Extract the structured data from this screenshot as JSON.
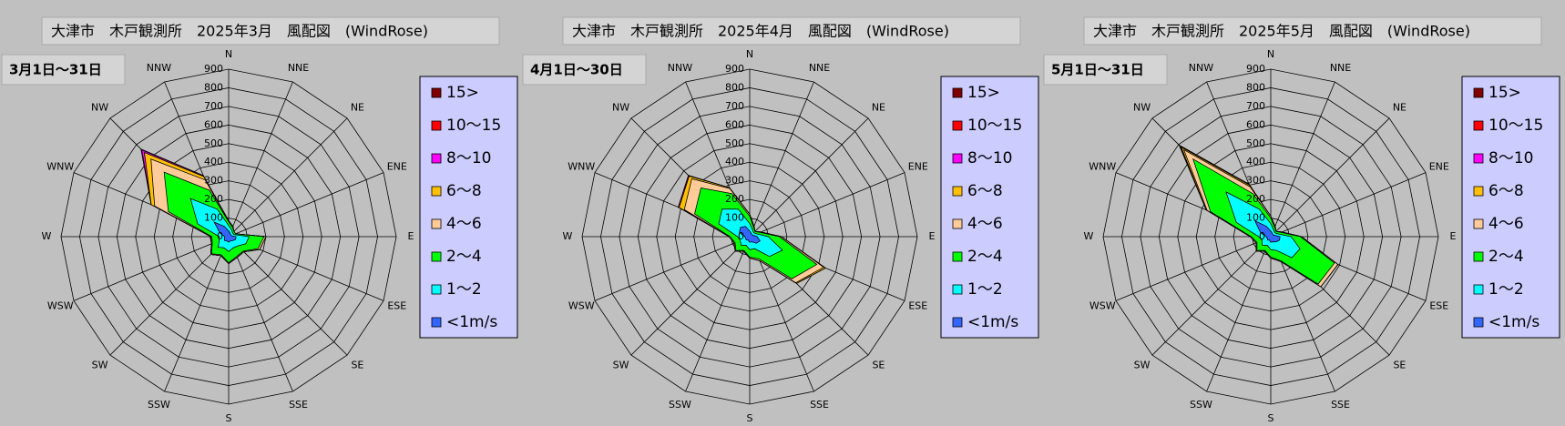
{
  "chart_data": [
    {
      "type": "radar",
      "stacked": true,
      "title": "大津市　木戸観測所　2025年3月　風配図　(WindRose)",
      "subtitle": "3月1日〜31日",
      "categories": [
        "N",
        "NNE",
        "NE",
        "ENE",
        "E",
        "ESE",
        "SE",
        "SSE",
        "S",
        "SSW",
        "SW",
        "WSW",
        "W",
        "WNW",
        "NW",
        "NNW"
      ],
      "rlim": [
        0,
        900
      ],
      "rticks": [
        0,
        100,
        200,
        300,
        400,
        500,
        600,
        700,
        800,
        900
      ],
      "series": [
        {
          "name": "15>",
          "color": "#800000",
          "values": [
            0,
            0,
            0,
            0,
            0,
            0,
            0,
            0,
            0,
            0,
            0,
            0,
            0,
            0,
            0,
            0
          ]
        },
        {
          "name": "10〜15",
          "color": "#ff0000",
          "values": [
            0,
            0,
            0,
            0,
            0,
            0,
            0,
            0,
            0,
            0,
            0,
            0,
            0,
            0,
            5,
            0
          ]
        },
        {
          "name": "8〜10",
          "color": "#ff00ff",
          "values": [
            0,
            0,
            0,
            0,
            0,
            0,
            0,
            0,
            0,
            0,
            0,
            0,
            0,
            0,
            20,
            5
          ]
        },
        {
          "name": "6〜8",
          "color": "#ffc000",
          "values": [
            0,
            0,
            0,
            0,
            0,
            0,
            0,
            0,
            0,
            0,
            0,
            0,
            0,
            20,
            50,
            20
          ]
        },
        {
          "name": "4〜6",
          "color": "#ffcc99",
          "values": [
            5,
            5,
            0,
            0,
            10,
            10,
            5,
            5,
            5,
            5,
            5,
            5,
            5,
            80,
            100,
            60
          ]
        },
        {
          "name": "2〜4",
          "color": "#00ff00",
          "values": [
            20,
            15,
            10,
            10,
            80,
            70,
            40,
            50,
            60,
            40,
            50,
            40,
            40,
            170,
            200,
            110
          ]
        },
        {
          "name": "1〜2",
          "color": "#00ffff",
          "values": [
            30,
            20,
            15,
            15,
            70,
            60,
            40,
            40,
            50,
            40,
            50,
            30,
            30,
            130,
            180,
            100
          ]
        },
        {
          "name": "<1m/s",
          "color": "#3366ff",
          "values": [
            30,
            20,
            15,
            15,
            40,
            40,
            30,
            25,
            30,
            25,
            30,
            25,
            20,
            50,
            110,
            60
          ]
        }
      ]
    },
    {
      "type": "radar",
      "stacked": true,
      "title": "大津市　木戸観測所　2025年4月　風配図　(WindRose)",
      "subtitle": "4月1日〜30日",
      "categories": [
        "N",
        "NNE",
        "NE",
        "ENE",
        "E",
        "ESE",
        "SE",
        "SSE",
        "S",
        "SSW",
        "SW",
        "WSW",
        "W",
        "WNW",
        "NW",
        "NNW"
      ],
      "rlim": [
        0,
        900
      ],
      "rticks": [
        0,
        100,
        200,
        300,
        400,
        500,
        600,
        700,
        800,
        900
      ],
      "series": [
        {
          "name": "15>",
          "color": "#800000",
          "values": [
            0,
            0,
            0,
            0,
            0,
            0,
            0,
            0,
            0,
            0,
            0,
            0,
            0,
            0,
            0,
            0
          ]
        },
        {
          "name": "10〜15",
          "color": "#ff0000",
          "values": [
            0,
            0,
            0,
            0,
            0,
            0,
            0,
            0,
            0,
            0,
            0,
            0,
            0,
            0,
            0,
            0
          ]
        },
        {
          "name": "8〜10",
          "color": "#ff00ff",
          "values": [
            0,
            0,
            0,
            0,
            0,
            0,
            0,
            0,
            0,
            0,
            0,
            0,
            0,
            5,
            5,
            0
          ]
        },
        {
          "name": "6〜8",
          "color": "#ffc000",
          "values": [
            0,
            0,
            0,
            0,
            0,
            10,
            5,
            0,
            0,
            0,
            0,
            0,
            0,
            30,
            20,
            5
          ]
        },
        {
          "name": "4〜6",
          "color": "#ffcc99",
          "values": [
            10,
            5,
            0,
            5,
            10,
            40,
            30,
            10,
            5,
            5,
            5,
            5,
            5,
            60,
            70,
            30
          ]
        },
        {
          "name": "2〜4",
          "color": "#00ff00",
          "values": [
            40,
            15,
            10,
            20,
            60,
            200,
            170,
            60,
            40,
            30,
            40,
            30,
            40,
            140,
            160,
            90
          ]
        },
        {
          "name": "1〜2",
          "color": "#00ffff",
          "values": [
            40,
            20,
            15,
            20,
            60,
            130,
            100,
            40,
            40,
            30,
            40,
            30,
            40,
            120,
            140,
            100
          ]
        },
        {
          "name": "<1m/s",
          "color": "#3366ff",
          "values": [
            30,
            20,
            15,
            20,
            40,
            60,
            50,
            30,
            30,
            20,
            25,
            25,
            25,
            60,
            70,
            60
          ]
        }
      ]
    },
    {
      "type": "radar",
      "stacked": true,
      "title": "大津市　木戸観測所　2025年5月　風配図　(WindRose)",
      "subtitle": "5月1日〜31日",
      "categories": [
        "N",
        "NNE",
        "NE",
        "ENE",
        "E",
        "ESE",
        "SE",
        "SSE",
        "S",
        "SSW",
        "SW",
        "WSW",
        "W",
        "WNW",
        "NW",
        "NNW"
      ],
      "rlim": [
        0,
        900
      ],
      "rticks": [
        0,
        100,
        200,
        300,
        400,
        500,
        600,
        700,
        800,
        900
      ],
      "series": [
        {
          "name": "15>",
          "color": "#800000",
          "values": [
            0,
            0,
            0,
            0,
            0,
            0,
            0,
            0,
            0,
            0,
            0,
            0,
            0,
            0,
            0,
            0
          ]
        },
        {
          "name": "10〜15",
          "color": "#ff0000",
          "values": [
            0,
            0,
            0,
            0,
            0,
            0,
            0,
            0,
            0,
            0,
            0,
            0,
            0,
            0,
            5,
            0
          ]
        },
        {
          "name": "8〜10",
          "color": "#ff00ff",
          "values": [
            0,
            0,
            0,
            0,
            0,
            0,
            0,
            0,
            0,
            0,
            0,
            0,
            0,
            0,
            10,
            5
          ]
        },
        {
          "name": "6〜8",
          "color": "#ffc000",
          "values": [
            0,
            0,
            0,
            0,
            0,
            0,
            0,
            0,
            0,
            0,
            0,
            0,
            0,
            5,
            20,
            10
          ]
        },
        {
          "name": "4〜6",
          "color": "#ffcc99",
          "values": [
            10,
            5,
            0,
            5,
            5,
            20,
            20,
            5,
            5,
            5,
            5,
            5,
            5,
            20,
            70,
            40
          ]
        },
        {
          "name": "2〜4",
          "color": "#00ff00",
          "values": [
            30,
            15,
            10,
            20,
            50,
            200,
            200,
            60,
            40,
            30,
            40,
            30,
            40,
            150,
            250,
            90
          ]
        },
        {
          "name": "1〜2",
          "color": "#00ffff",
          "values": [
            40,
            20,
            15,
            20,
            60,
            120,
            120,
            50,
            40,
            30,
            40,
            30,
            40,
            140,
            220,
            100
          ]
        },
        {
          "name": "<1m/s",
          "color": "#3366ff",
          "values": [
            30,
            20,
            15,
            20,
            50,
            50,
            40,
            30,
            30,
            20,
            25,
            20,
            25,
            60,
            120,
            60
          ]
        }
      ]
    }
  ]
}
